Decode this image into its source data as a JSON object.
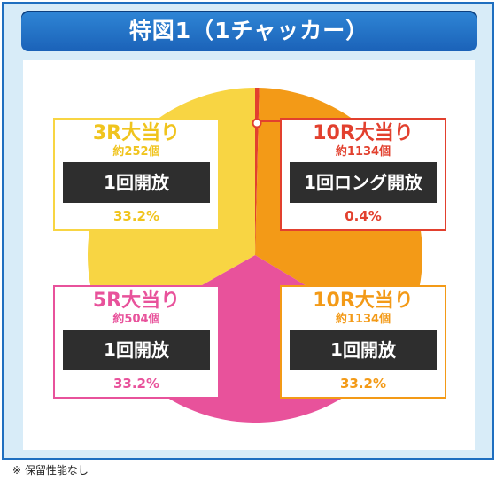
{
  "title": "特図1（1チャッカー）",
  "note": "※ 保留性能なし",
  "colors": {
    "frame_border": "#1f6fc0",
    "frame_bg": "#d8ecf8",
    "yellow": "#f8d543",
    "orange": "#f39a17",
    "pink": "#e8529b",
    "red": "#e2402e",
    "yellow_text": "#f0c41e",
    "dark_box": "#2e2e2e"
  },
  "cards": [
    {
      "head": "3R大当り",
      "sub": "約252個",
      "box": "1回開放",
      "pct": "33.2%",
      "color": "#f0c41e",
      "border": "#f8d543"
    },
    {
      "head": "10R大当り",
      "sub": "約1134個",
      "box": "1回ロング開放",
      "pct": "0.4%",
      "color": "#e2402e",
      "border": "#e2402e"
    },
    {
      "head": "5R大当り",
      "sub": "約504個",
      "box": "1回開放",
      "pct": "33.2%",
      "color": "#e8529b",
      "border": "#e8529b"
    },
    {
      "head": "10R大当り",
      "sub": "約1134個",
      "box": "1回開放",
      "pct": "33.2%",
      "color": "#f39a17",
      "border": "#f39a17"
    }
  ],
  "chart_data": {
    "type": "pie",
    "title": "特図1（1チャッカー）",
    "slices": [
      {
        "label": "10R大当り 1回ロング開放",
        "value": 0.4,
        "color": "#e2402e"
      },
      {
        "label": "10R大当り 1回開放",
        "value": 33.2,
        "color": "#f39a17"
      },
      {
        "label": "5R大当り 1回開放",
        "value": 33.2,
        "color": "#e8529b"
      },
      {
        "label": "3R大当り 1回開放",
        "value": 33.2,
        "color": "#f8d543"
      }
    ]
  }
}
